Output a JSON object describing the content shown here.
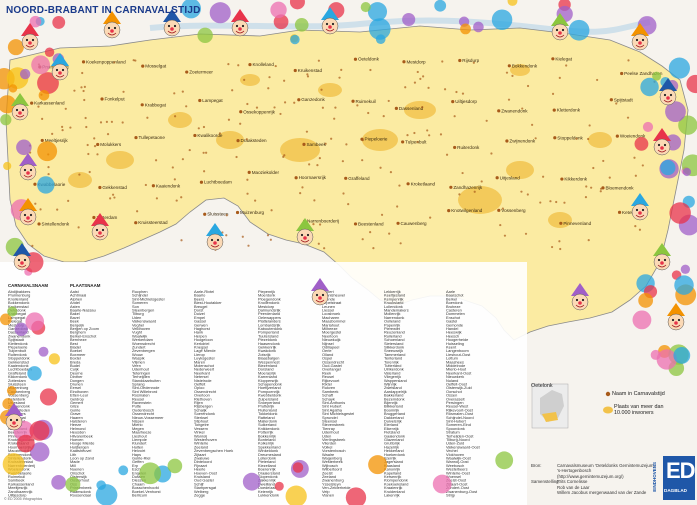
{
  "title": "NOORD-BRABANT IN CARNAVALSTIJD",
  "colors": {
    "province": "#fbeba2",
    "urban": "#f2c24a",
    "outside": "#f6f3ee",
    "border": "#8a8a8a",
    "marker": "#a85a1a",
    "brand": "#1f57a8",
    "list_bg": "#ffffff"
  },
  "places": [
    "Pruimenburg",
    "Koekenpoppenland",
    "Mosselgat",
    "Zoetermeer",
    "Knolleland",
    "Kruikenstad",
    "Oeteldonk",
    "Mestdorp",
    "Rijsdurp",
    "Bokkendonk",
    "Kielegat",
    "Peelse Zandhazen",
    "Karkassenland",
    "Fonkelput",
    "Krabbegat",
    "Lampegat",
    "Ossekoppenrijk",
    "Ganzedonk",
    "Ruimekuil",
    "Dassenland",
    "Uiltjesdorp",
    "Zwanendonk",
    "Kletterdonk",
    "Spijtstadt",
    "Meeltjesrijk",
    "Molukkers",
    "Tullepetaone",
    "Kwalikoorde",
    "Draaksteden",
    "Sambeek",
    "Piepeloerie",
    "Tulpenbult",
    "Ruiterdonk",
    "Zwijnendonk",
    "Stoppeldonk",
    "Woeiendonk",
    "Kwabbelaorie",
    "Gekkenstad",
    "Kaaiendonk",
    "Luchtboedam",
    "Maoziekolder",
    "Hoornaersrijk",
    "Graffeland",
    "Kroketlaand",
    "Zandhazenrijk",
    "Uitjesland",
    "Kikkerdonk",
    "Bloemendonk",
    "Sintellendonk",
    "Zotterdam",
    "Kruissteerstad",
    "Sluissteen",
    "Muizenburg",
    "Narrenboerderij",
    "Beestenland",
    "Cauwenberg",
    "Knotwilgenland",
    "Vossenberg",
    "Pinnevenland",
    "Keteldonk"
  ],
  "list_headers": [
    "CARNAVALSNAAM",
    "PLAATSNAAM"
  ],
  "list_columns": [
    [
      "Abdijbakkers",
      "Pruimenburg",
      "Knollenland",
      "Bokkendonk",
      "Kruikenstad",
      "Oeteldonk",
      "Krabbegat",
      "Lampegat",
      "Kielegat",
      "Mestdorp",
      "Ganzedonk",
      "Dassenland",
      "Zwanendonk",
      "Spijtstadt",
      "Kletterdonk",
      "Piepeloerie",
      "Tulpenbult",
      "Ruiterdonk",
      "Stoppeldonk",
      "Gekkenstad",
      "Kaaiendonk",
      "Luchtboedam",
      "Graffeland",
      "Kikkerdonk",
      "Zotterdam",
      "Sluissteen",
      "Muizenburg",
      "Cauwenberg",
      "Vossenberg",
      "Keteldonk",
      "Uitjesland",
      "Zwijnendonk",
      "Draaksteden",
      "Molukkers",
      "Mosselgat",
      "Fonkelput",
      "Rijsdurp",
      "Narrenland",
      "Beestenrijk",
      "Pinnevenland",
      "Knotwilgenland",
      "Kroketlaand",
      "Hoornaersrijk",
      "Maoziekolder",
      "Bloemendonk",
      "Sintellendonk",
      "Kruissteerstad",
      "Narrenboerderij",
      "Woeiendonk",
      "Kwabbelaorie",
      "Ruimekuil",
      "Sambeek",
      "Karkassenland",
      "Meeltjesrijk",
      "Zandhazenrijk",
      "Uiltjesdorp"
    ],
    [
      "Aalst",
      "Achtmaal",
      "Alphen",
      "Andel",
      "Asten",
      "Baarle-Nassau",
      "Bakel",
      "Bavel",
      "Beek",
      "Bergeijk",
      "Bergen op Zoom",
      "Berghem",
      "Berkel-Enschot",
      "Bernheze",
      "Best",
      "Bladel",
      "Boekel",
      "Boxmeer",
      "Boxtel",
      "Breda",
      "Budel",
      "Cuijk",
      "Deurne",
      "Dinther",
      "Dongen",
      "Drunen",
      "Eersel",
      "Eindhoven",
      "Etten-Leur",
      "Geldrop",
      "Gemert",
      "Gilze",
      "Goirle",
      "Grave",
      "Haaren",
      "Halsteren",
      "Heeze",
      "Helmond",
      "Heusden",
      "Hilvarenbeek",
      "Hoeven",
      "Hooge Mierde",
      "Huijbergen",
      "Kaatsheuvel",
      "Lith",
      "Loon op Zand",
      "Made",
      "Mill",
      "Nuenen",
      "Oirschot",
      "Oisterwijk",
      "Oosterhout",
      "Oss",
      "Prinsenbeek",
      "Raamsdonk",
      "Roosendaal"
    ],
    [
      "Rucphen",
      "Schijndel",
      "Sint-Michielsgestel",
      "Someren",
      "Son",
      "Steenbergen",
      "Tilburg",
      "Uden",
      "Valkenswaard",
      "Veghel",
      "Veldhoven",
      "Vught",
      "Waalwijk",
      "Werkendam",
      "Woensdrecht",
      "Zundert",
      "Zevenbergen",
      "Wouw",
      "Waspik",
      "Vlijmen",
      "Veen",
      "Udenhout",
      "Teteringen",
      "Terheijden",
      "Standdaarbuiten",
      "Sprang",
      "Sint-Oedenrode",
      "Sint Willebrord",
      "Rosmalen",
      "Reusel",
      "Ravenstein",
      "Putte",
      "Oudenbosch",
      "Ossendrecht",
      "Nieuw-Vossemeer",
      "Nispen",
      "Mierlo",
      "Megen",
      "Maarheeze",
      "Lieshout",
      "Liempde",
      "Klundert",
      "Hulten",
      "Helvoirt",
      "Haps",
      "Goirle-Riel",
      "Geffen",
      "Erp",
      "Esch",
      "Engelen",
      "Dussen",
      "Diessen",
      "Chaam",
      "Bosschenhoofd",
      "Boekel-Venhorst",
      "Berlicum"
    ],
    [
      "Aarle-Rixtel",
      "Baarlo",
      "Beers",
      "Biest-Houtakker",
      "Breugel",
      "Dorst",
      "Duizel",
      "Empel",
      "Gassel",
      "Gerwen",
      "Haghorst",
      "Hank",
      "Herpen",
      "Hoogeloon",
      "Kerkdriel",
      "Knegsel",
      "Lage Mierde",
      "Lierop",
      "Luyksgestel",
      "Maren",
      "Molenschot",
      "Nederweert",
      "Neerkant",
      "Netersel",
      "Nistelrode",
      "Oeffelt",
      "Oploo",
      "Ossendrecht",
      "Overloon",
      "Riethoven",
      "Rijen",
      "Rijsbergen",
      "Schaijk",
      "Soerendonk",
      "Sterksel",
      "Stiphout",
      "Tongelre",
      "Vessem",
      "Vinkel",
      "Wanroij",
      "Westerhoven",
      "Wintelre",
      "Zeeland",
      "Zevenbergschen Hoek",
      "Zijtaart",
      "Zwaluwe",
      "Dinteloord",
      "Fijnaart",
      "Heerle",
      "Hoeven-Oost",
      "Kruisland",
      "Oud Gastel",
      "Schijf",
      "Stampersgat",
      "Welberg",
      "Zegge"
    ],
    [
      "Piepenrijk",
      "Moerdonk",
      "Ploegendonk",
      "Knollendonk",
      "Mestdorp",
      "Dalmundsrijk",
      "Peerdenland",
      "Oelewappers",
      "Plattelanders",
      "Lombardsrijk",
      "Kabouterdonk",
      "Pomperland",
      "Tuutersland",
      "Piezeldonk",
      "Haasendonk",
      "Gekkenrijk",
      "Kwakdonk",
      "Zotsrijk",
      "Blaasbalgen",
      "Wespennest",
      "Biezenland",
      "Dorsland",
      "Moerasrijk",
      "Karrenland",
      "Kloppersrijk",
      "Schapendonk",
      "Hoefijzerland",
      "Pompoenrijk",
      "Kwebbeldonk",
      "Zuipersland",
      "Snoeperland",
      "Pruttelrijk",
      "Fluitenland",
      "Tokkeldonk",
      "Ratteland",
      "Mallerdonk",
      "Suikerland",
      "Knikkerdonk",
      "Potterrijk",
      "Bokkenrijk",
      "Bonteland",
      "Kolkerrijk",
      "Spekkenland",
      "Winkeldonk",
      "Dreumesland",
      "Lollerdonk",
      "Pieterland",
      "Kiezelland",
      "Boerenrijk",
      "Draaiersland",
      "Sloperdonk",
      "Zakkenrijk",
      "Dweilland",
      "Doedelzak",
      "Keienrijk",
      "Lukkendonk"
    ],
    [
      "Hapert",
      "Lennisheuvel",
      "Leende",
      "Lepelstraat",
      "Leunen",
      "Liessel",
      "Loosbroek",
      "Macharen",
      "Maasbommel",
      "Mariahout",
      "Milheeze",
      "Moergestel",
      "Neerloon",
      "Nieuwkuijk",
      "Nijnsel",
      "Odiliapeel",
      "Oerle",
      "Olland",
      "Ospel",
      "Ossendrecht",
      "Oud-Gastel",
      "Overlangel",
      "Reek",
      "Reusel",
      "Rijkevoort",
      "Rixtel",
      "Rukven",
      "Sambeek",
      "Schaft",
      "Schayk",
      "Sint-Anthonis",
      "Sint Hubert",
      "Sint Agatha",
      "Sint Michielsgestel",
      "Sprundel",
      "Steensel",
      "Stevensbeek",
      "Tienray",
      "Udenhout",
      "Uden",
      "Vierlingsbeek",
      "Vlierden",
      "Volkel",
      "Vorstenbosch",
      "Waalre",
      "Wagenberg",
      "Westerbeek",
      "Wijbosch",
      "Wilbertoord",
      "Zeelst",
      "Zeeland",
      "Zwanenburg",
      "Ysselsteyn",
      "Ven-Zelderheide",
      "Velp",
      "Vianen"
    ],
    [
      "Lekkerrijk",
      "Keeltjesland",
      "Kempenrijk",
      "Kruuksland",
      "Lollendonk",
      "Mandemakers",
      "Mollenrijk",
      "Narrendonk",
      "Oolleland",
      "Papenrijk",
      "Pierewiet",
      "Reuzenland",
      "Ruilerland",
      "Schoenland",
      "Sietersland",
      "Slikkerdonk",
      "Sneeuwrijk",
      "Tammerland",
      "Tenterland",
      "Torenrijk",
      "Tutterland",
      "Ulrikerdonk",
      "Vaterland",
      "Vliegerrijk",
      "Wappersland",
      "Wijnrijk",
      "Zwetsland",
      "Aardappelrijk",
      "Bakkerland",
      "Bezemdonk",
      "Bijenrijk",
      "Blikkerland",
      "Boomrijk",
      "Bruggerland",
      "Dakkerland",
      "Duivelsrijk",
      "Eierland",
      "Eikenrijk",
      "Fietsland",
      "Gaaiendonk",
      "Glazenland",
      "Gruttorijk",
      "Hazelrijk",
      "Hekkerland",
      "Hoekerdonk",
      "Ijzerrijk",
      "Jagersland",
      "Kaasland",
      "Kanonrijk",
      "Kapelland",
      "Kersenrijk",
      "Klompendonk",
      "Koekoeksland",
      "Kraaienrijk",
      "Kruidenland",
      "Lakenrijk"
    ],
    [
      "Aarle",
      "Baarschot",
      "Berkel",
      "Boerdonk",
      "Bruheze",
      "Casteren",
      "Dommelen",
      "Enschot",
      "Gastel",
      "Gemonde",
      "Handel",
      "Heeswijk",
      "Heesch",
      "Hoogerheide",
      "Huisseling",
      "Keent",
      "Langenboom",
      "Lieshout-Oost",
      "Lottum",
      "Maashees",
      "Middelrode",
      "Mierlo-Hout",
      "Neerkant-Oost",
      "Nieuwkerk",
      "Nuland",
      "Oeffelt-Oost",
      "Oisterwijk-Zuid",
      "Oorschot",
      "Ossen",
      "Overasselt",
      "Persingen",
      "Reusel-West",
      "Rijkevoort-Oost",
      "Rosmalen-Oost",
      "Schijndel-Noord",
      "Sint-Hubert",
      "Someren-Eind",
      "Spoordonk",
      "Stratum",
      "Terheijden-Oost",
      "Tilburg-Noord",
      "Uden-Zuid",
      "Valkenswaard-Oost",
      "Vechel",
      "Vlokhoven",
      "Waalwijk-Oost",
      "Wanroij-Oost",
      "Weebosch",
      "Westelbeers",
      "Wintelre-Oost",
      "Woensel",
      "Zeelst-Oost",
      "Zijtaart-Oost",
      "Zundert-Oost",
      "Zwanenburg-Oost",
      "Strijp"
    ]
  ],
  "legend": {
    "heading": "Oetelonk",
    "item_name": "Naam in Carnavalstijd",
    "item_place_1": "Plaats van meer dan",
    "item_place_2": "10.000 inwoners"
  },
  "credits": [
    {
      "k": "Bron:",
      "v": "Carnavalsmuseum 'Oeteldonks Gemintemuzejum',"
    },
    {
      "k": "",
      "v": "'s-Hertogenbosch"
    },
    {
      "k": "",
      "v": "(http://www.gemintemuzejum.org/)"
    },
    {
      "k": "Samenstelling:",
      "v": "Frits Cornelisse"
    },
    {
      "k": "",
      "v": "Rob van de Laar"
    },
    {
      "k": "",
      "v": "Willem Jacobus mergenwaand van der Zande"
    }
  ],
  "logo": {
    "mark": "ED",
    "sub": "DAGBLAD",
    "side": "EINDHOVENS"
  },
  "copyright": "© ED 2005 Infographics"
}
